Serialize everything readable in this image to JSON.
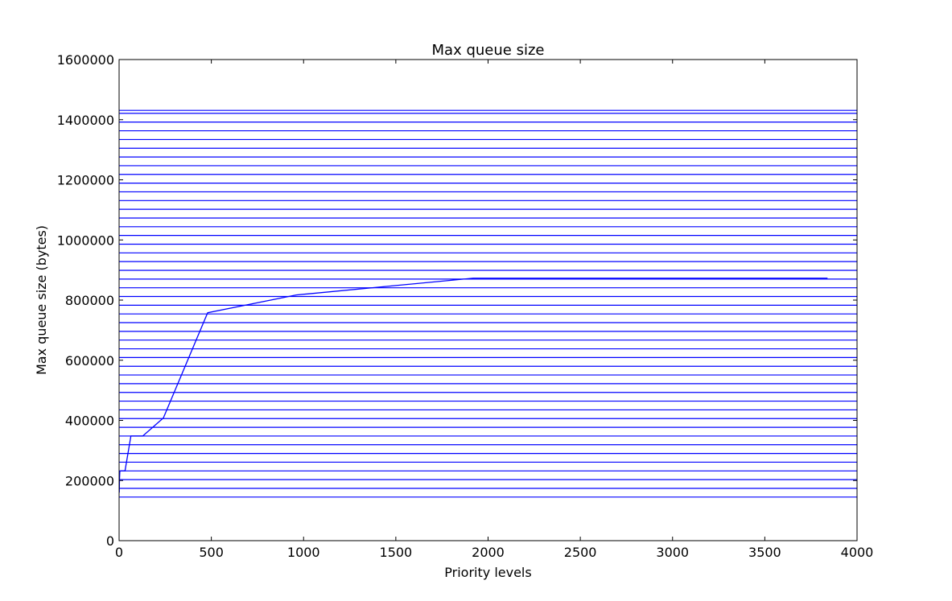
{
  "chart_data": {
    "type": "line",
    "title": "Max queue size",
    "xlabel": "Priority levels",
    "ylabel": "Max queue size (bytes)",
    "xlim": [
      0,
      4000
    ],
    "ylim": [
      0,
      1600000
    ],
    "x_ticks": [
      "0",
      "500",
      "1000",
      "1500",
      "2000",
      "2500",
      "3000",
      "3500",
      "4000"
    ],
    "y_ticks": [
      "0",
      "200000",
      "400000",
      "600000",
      "800000",
      "1000000",
      "1200000",
      "1400000",
      "1600000"
    ],
    "x_tick_values": [
      0,
      500,
      1000,
      1500,
      2000,
      2500,
      3000,
      3500,
      4000
    ],
    "y_tick_values": [
      0,
      200000,
      400000,
      600000,
      800000,
      1000000,
      1200000,
      1400000,
      1600000
    ],
    "grid": false,
    "series": [
      {
        "color": "#0000ff",
        "x": [
          1,
          2,
          4,
          8,
          16,
          32,
          64,
          128,
          240,
          480,
          960,
          1920,
          3840
        ],
        "y": [
          160000,
          200000,
          230000,
          232000,
          232000,
          232000,
          348000,
          348000,
          408000,
          758000,
          817000,
          873000,
          873000
        ]
      }
    ],
    "horizontal_lines": {
      "color": "#0000ff",
      "y": [
        145000,
        174000,
        203000,
        232000,
        261000,
        290000,
        319000,
        348000,
        377000,
        406000,
        435000,
        464000,
        493000,
        522000,
        551000,
        580000,
        609000,
        638000,
        667000,
        696000,
        725000,
        754000,
        783000,
        812000,
        841000,
        870000,
        899000,
        928000,
        957000,
        986000,
        1015000,
        1044000,
        1073000,
        1102000,
        1131000,
        1160000,
        1189000,
        1218000,
        1247000,
        1276000,
        1305000,
        1334000,
        1363000,
        1392000,
        1421000,
        1431000
      ]
    }
  }
}
